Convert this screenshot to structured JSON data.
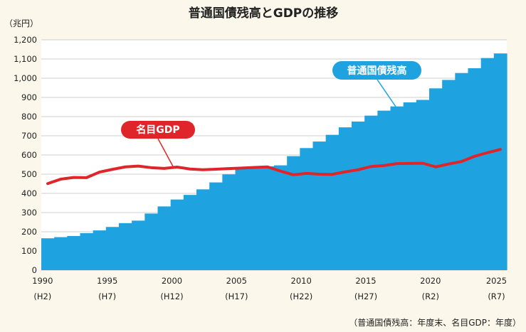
{
  "chart_data": {
    "type": "bar+line",
    "title": "普通国債残高とGDPの推移",
    "ylabel": "（兆円）",
    "ylim": [
      0,
      1200
    ],
    "yticks": [
      "0",
      "100",
      "200",
      "300",
      "400",
      "500",
      "600",
      "700",
      "800",
      "900",
      "1,000",
      "1,100",
      "1,200"
    ],
    "xlim": [
      1990,
      2025
    ],
    "xticks": [
      {
        "year": 1990,
        "label": "1990",
        "era": "(H2)"
      },
      {
        "year": 1995,
        "label": "1995",
        "era": "(H7)"
      },
      {
        "year": 2000,
        "label": "2000",
        "era": "(H12)"
      },
      {
        "year": 2005,
        "label": "2005",
        "era": "(H17)"
      },
      {
        "year": 2010,
        "label": "2010",
        "era": "(H22)"
      },
      {
        "year": 2015,
        "label": "2015",
        "era": "(H27)"
      },
      {
        "year": 2020,
        "label": "2020",
        "era": "(R2)"
      },
      {
        "year": 2025,
        "label": "2025",
        "era": "(R7)"
      }
    ],
    "x": [
      1990,
      1991,
      1992,
      1993,
      1994,
      1995,
      1996,
      1997,
      1998,
      1999,
      2000,
      2001,
      2002,
      2003,
      2004,
      2005,
      2006,
      2007,
      2008,
      2009,
      2010,
      2011,
      2012,
      2013,
      2014,
      2015,
      2016,
      2017,
      2018,
      2019,
      2020,
      2021,
      2022,
      2023,
      2024,
      2025
    ],
    "series": [
      {
        "name": "普通国債残高",
        "kind": "area-step",
        "color": "#1fa3e0",
        "values": [
          166,
          172,
          178,
          193,
          207,
          225,
          245,
          258,
          295,
          332,
          368,
          392,
          421,
          457,
          499,
          527,
          532,
          541,
          546,
          594,
          636,
          670,
          705,
          744,
          774,
          805,
          831,
          853,
          874,
          887,
          947,
          991,
          1027,
          1052,
          1105,
          1129
        ]
      },
      {
        "name": "名目GDP",
        "kind": "line",
        "color": "#e0252a",
        "values": [
          451,
          474,
          483,
          482,
          511,
          525,
          538,
          542,
          534,
          530,
          537,
          527,
          523,
          526,
          529,
          532,
          535,
          538,
          516,
          497,
          504,
          500,
          499,
          512,
          523,
          540,
          545,
          555,
          556,
          557,
          538,
          553,
          566,
          593,
          612,
          629
        ]
      }
    ],
    "callouts": [
      {
        "series": 0,
        "text": "普通国債残高"
      },
      {
        "series": 1,
        "text": "名目GDP"
      }
    ],
    "note": "（普通国債残高：年度末、名目GDP：年度）",
    "colors": {
      "background": "#fbf7ea",
      "plot_background": "#ffffff",
      "grid": "#cfcfcf"
    }
  }
}
